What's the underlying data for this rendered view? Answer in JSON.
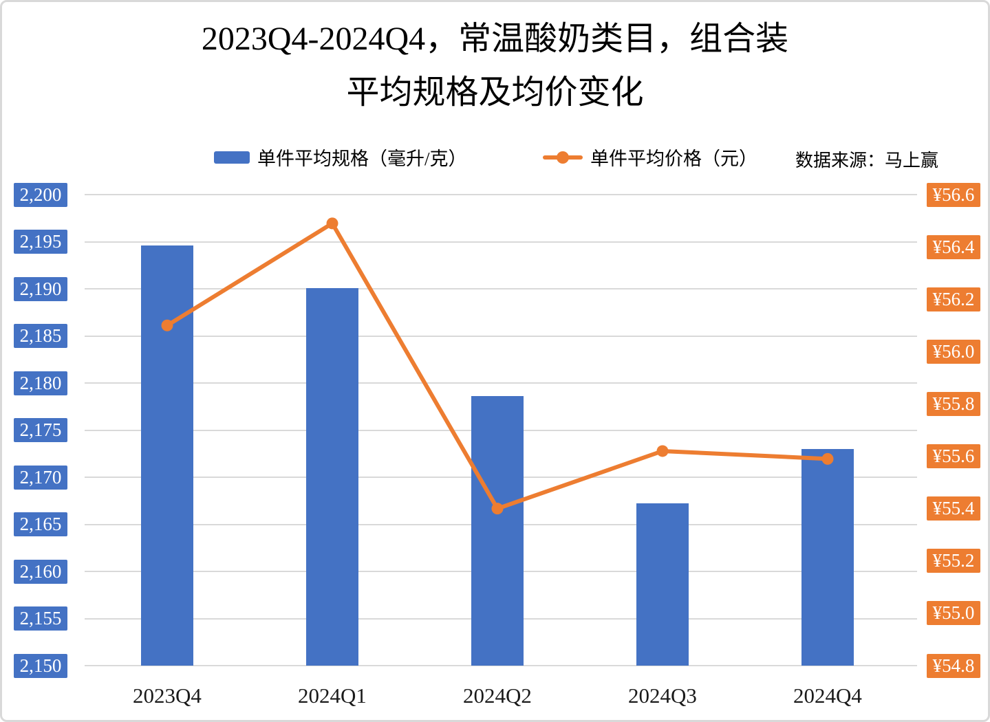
{
  "title": {
    "line1": "2023Q4-2024Q4，常温酸奶类目，组合装",
    "line2": "平均规格及均价变化"
  },
  "legend": {
    "bars_label": "单件平均规格（毫升/克）",
    "line_label": "单件平均价格（元）"
  },
  "source": "数据来源：马上赢",
  "colors": {
    "bar": "#4472C4",
    "line": "#ED7D31",
    "gridline": "#D9D9D9",
    "tick_text": "#FFFFFF",
    "axis_text": "#1A1A1A"
  },
  "chart_data": {
    "type": "bar",
    "subtype": "combo-bar-line-dual-axis",
    "title": "2023Q4-2024Q4，常温酸奶类目，组合装 平均规格及均价变化",
    "categories": [
      "2023Q4",
      "2024Q1",
      "2024Q2",
      "2024Q3",
      "2024Q4"
    ],
    "series": [
      {
        "name": "单件平均规格（毫升/克）",
        "type": "bar",
        "axis": "left",
        "values": [
          2194.6,
          2190.1,
          2178.6,
          2167.2,
          2173.0
        ]
      },
      {
        "name": "单件平均价格（元）",
        "type": "line",
        "axis": "right",
        "values": [
          56.1,
          56.49,
          55.4,
          55.62,
          55.59
        ]
      }
    ],
    "left_axis": {
      "min": 2150,
      "max": 2200,
      "step": 5,
      "labels": [
        "2,200",
        "2,195",
        "2,190",
        "2,185",
        "2,180",
        "2,175",
        "2,170",
        "2,165",
        "2,160",
        "2,155",
        "2,150"
      ]
    },
    "right_axis": {
      "min": 54.8,
      "max": 56.6,
      "step": 0.2,
      "prefix": "¥",
      "labels": [
        "¥56.6",
        "¥56.4",
        "¥56.2",
        "¥56.0",
        "¥55.8",
        "¥55.6",
        "¥55.4",
        "¥55.2",
        "¥55.0",
        "¥54.8"
      ]
    },
    "grid": true,
    "legend_position": "top"
  }
}
